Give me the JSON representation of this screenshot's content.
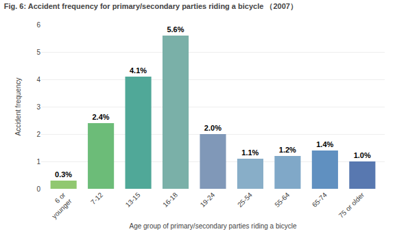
{
  "chart_data": {
    "type": "bar",
    "title": "Fig. 6: Accident frequency for primary/secondary parties riding a bicycle （2007）",
    "xlabel": "Age group of primary/secondary parties riding a bicycle",
    "ylabel": "Accident frequency",
    "categories": [
      "6 or\nyounger",
      "7-12",
      "13-15",
      "16-18",
      "19-24",
      "25-54",
      "55-64",
      "65-74",
      "75 or older"
    ],
    "values": [
      0.3,
      2.4,
      4.1,
      5.6,
      2.0,
      1.1,
      1.2,
      1.4,
      1.0
    ],
    "value_labels": [
      "0.3%",
      "2.4%",
      "4.1%",
      "5.6%",
      "2.0%",
      "1.1%",
      "1.2%",
      "1.4%",
      "1.0%"
    ],
    "data_labels": true,
    "colors": [
      "#90c870",
      "#6cbc78",
      "#50a898",
      "#7ab0a8",
      "#8098b8",
      "#88aec8",
      "#80a8c8",
      "#6090c0",
      "#5878b0"
    ],
    "ylim": [
      0,
      6
    ],
    "yticks": [
      0,
      1,
      2,
      3,
      4,
      5,
      6
    ],
    "grid": true
  }
}
